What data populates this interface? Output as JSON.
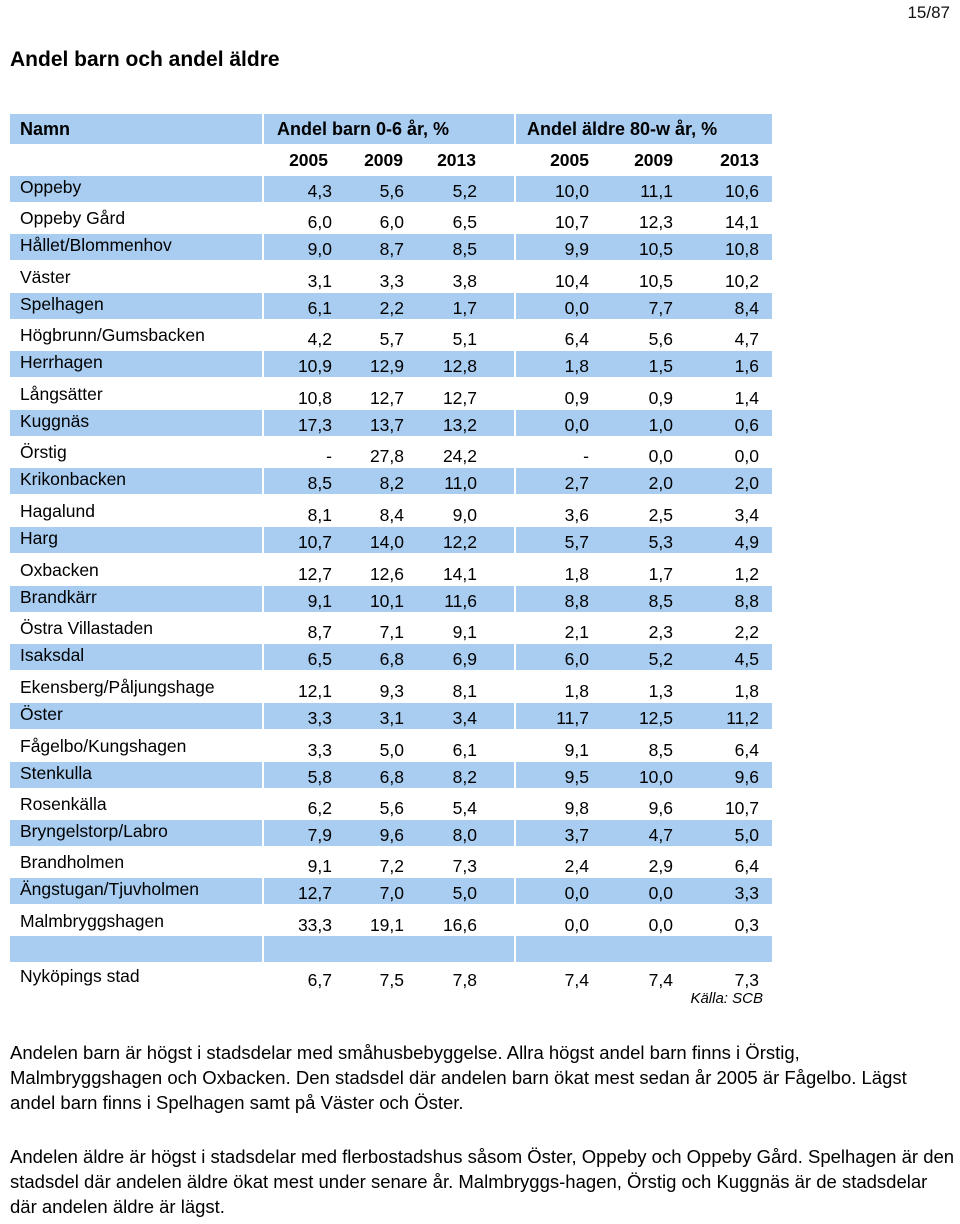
{
  "page_number": "15/87",
  "title": "Andel barn och andel äldre",
  "table": {
    "header": {
      "name_label": "Namn",
      "group1_label": "Andel barn 0-6 år, %",
      "group2_label": "Andel äldre 80-w år, %"
    },
    "years": [
      "2005",
      "2009",
      "2013",
      "2005",
      "2009",
      "2013"
    ],
    "rows": [
      {
        "name": "Oppeby",
        "values": [
          "4,3",
          "5,6",
          "5,2",
          "10,0",
          "11,1",
          "10,6"
        ]
      },
      {
        "name": "Oppeby Gård",
        "values": [
          "6,0",
          "6,0",
          "6,5",
          "10,7",
          "12,3",
          "14,1"
        ]
      },
      {
        "name": "Hållet/Blommenhov",
        "values": [
          "9,0",
          "8,7",
          "8,5",
          "9,9",
          "10,5",
          "10,8"
        ]
      },
      {
        "name": "Väster",
        "values": [
          "3,1",
          "3,3",
          "3,8",
          "10,4",
          "10,5",
          "10,2"
        ]
      },
      {
        "name": "Spelhagen",
        "values": [
          "6,1",
          "2,2",
          "1,7",
          "0,0",
          "7,7",
          "8,4"
        ]
      },
      {
        "name": "Högbrunn/Gumsbacken",
        "values": [
          "4,2",
          "5,7",
          "5,1",
          "6,4",
          "5,6",
          "4,7"
        ]
      },
      {
        "name": "Herrhagen",
        "values": [
          "10,9",
          "12,9",
          "12,8",
          "1,8",
          "1,5",
          "1,6"
        ]
      },
      {
        "name": "Långsätter",
        "values": [
          "10,8",
          "12,7",
          "12,7",
          "0,9",
          "0,9",
          "1,4"
        ]
      },
      {
        "name": "Kuggnäs",
        "values": [
          "17,3",
          "13,7",
          "13,2",
          "0,0",
          "1,0",
          "0,6"
        ]
      },
      {
        "name": "Örstig",
        "values": [
          "-",
          "27,8",
          "24,2",
          "-",
          "0,0",
          "0,0"
        ]
      },
      {
        "name": "Krikonbacken",
        "values": [
          "8,5",
          "8,2",
          "11,0",
          "2,7",
          "2,0",
          "2,0"
        ]
      },
      {
        "name": "Hagalund",
        "values": [
          "8,1",
          "8,4",
          "9,0",
          "3,6",
          "2,5",
          "3,4"
        ]
      },
      {
        "name": "Harg",
        "values": [
          "10,7",
          "14,0",
          "12,2",
          "5,7",
          "5,3",
          "4,9"
        ]
      },
      {
        "name": "Oxbacken",
        "values": [
          "12,7",
          "12,6",
          "14,1",
          "1,8",
          "1,7",
          "1,2"
        ]
      },
      {
        "name": "Brandkärr",
        "values": [
          "9,1",
          "10,1",
          "11,6",
          "8,8",
          "8,5",
          "8,8"
        ]
      },
      {
        "name": "Östra Villastaden",
        "values": [
          "8,7",
          "7,1",
          "9,1",
          "2,1",
          "2,3",
          "2,2"
        ]
      },
      {
        "name": "Isaksdal",
        "values": [
          "6,5",
          "6,8",
          "6,9",
          "6,0",
          "5,2",
          "4,5"
        ]
      },
      {
        "name": "Ekensberg/Påljungshage",
        "values": [
          "12,1",
          "9,3",
          "8,1",
          "1,8",
          "1,3",
          "1,8"
        ]
      },
      {
        "name": "Öster",
        "values": [
          "3,3",
          "3,1",
          "3,4",
          "11,7",
          "12,5",
          "11,2"
        ]
      },
      {
        "name": "Fågelbo/Kungshagen",
        "values": [
          "3,3",
          "5,0",
          "6,1",
          "9,1",
          "8,5",
          "6,4"
        ]
      },
      {
        "name": "Stenkulla",
        "values": [
          "5,8",
          "6,8",
          "8,2",
          "9,5",
          "10,0",
          "9,6"
        ]
      },
      {
        "name": "Rosenkälla",
        "values": [
          "6,2",
          "5,6",
          "5,4",
          "9,8",
          "9,6",
          "10,7"
        ]
      },
      {
        "name": "Bryngelstorp/Labro",
        "values": [
          "7,9",
          "9,6",
          "8,0",
          "3,7",
          "4,7",
          "5,0"
        ]
      },
      {
        "name": "Brandholmen",
        "values": [
          "9,1",
          "7,2",
          "7,3",
          "2,4",
          "2,9",
          "6,4"
        ]
      },
      {
        "name": "Ängstugan/Tjuvholmen",
        "values": [
          "12,7",
          "7,0",
          "5,0",
          "0,0",
          "0,0",
          "3,3"
        ]
      },
      {
        "name": "Malmbryggshagen",
        "values": [
          "33,3",
          "19,1",
          "16,6",
          "0,0",
          "0,0",
          "0,3"
        ]
      }
    ],
    "total": {
      "name": "Nyköpings stad",
      "values": [
        "6,7",
        "7,5",
        "7,8",
        "7,4",
        "7,4",
        "7,3"
      ]
    },
    "source": "Källa: SCB"
  },
  "paragraphs": [
    "Andelen barn är högst i stadsdelar med småhusbebyggelse. Allra högst andel barn finns i Örstig, Malmbryggshagen och Oxbacken. Den stadsdel där andelen barn ökat mest sedan år 2005 är Fågelbo. Lägst andel barn finns i Spelhagen samt på Väster och Öster.",
    "Andelen äldre är högst i stadsdelar med flerbostadshus såsom Öster, Oppeby och Oppeby Gård. Spelhagen är den stadsdel där andelen äldre ökat mest under senare år. Malmbryggs-hagen, Örstig och Kuggnäs är de stadsdelar där andelen äldre är lägst."
  ],
  "colors": {
    "band": "#a8cdf1"
  }
}
